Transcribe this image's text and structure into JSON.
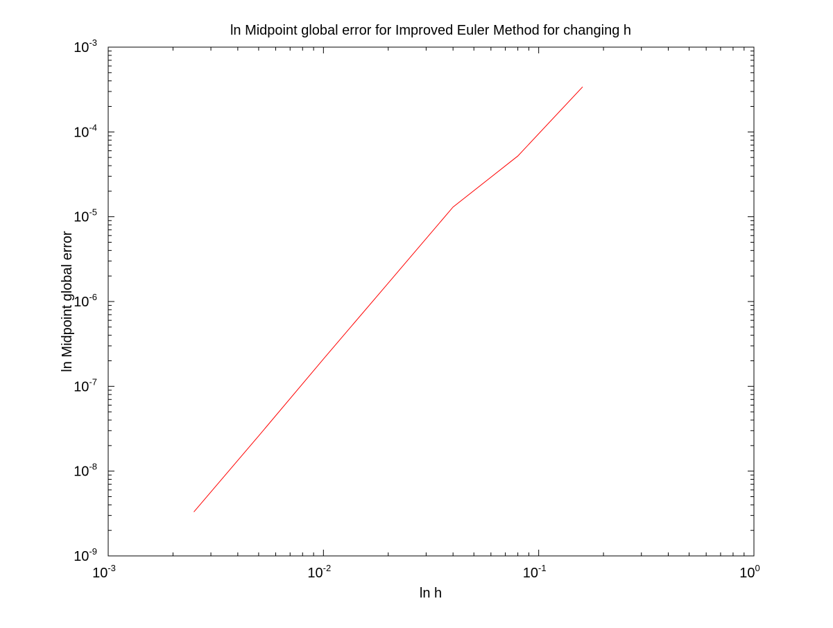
{
  "chart_data": {
    "type": "line",
    "title": "ln Midpoint global error for Improved Euler Method for changing h",
    "xlabel": "ln h",
    "ylabel": "ln Midpoint global error",
    "x_scale": "log",
    "y_scale": "log",
    "xlim": [
      0.001,
      1
    ],
    "ylim": [
      1e-09,
      0.001
    ],
    "grid": false,
    "x_ticks": [
      {
        "value": 0.001,
        "base": "10",
        "exp": "-3"
      },
      {
        "value": 0.01,
        "base": "10",
        "exp": "-2"
      },
      {
        "value": 0.1,
        "base": "10",
        "exp": "-1"
      },
      {
        "value": 1,
        "base": "10",
        "exp": "0"
      }
    ],
    "y_ticks": [
      {
        "value": 1e-09,
        "base": "10",
        "exp": "-9"
      },
      {
        "value": 1e-08,
        "base": "10",
        "exp": "-8"
      },
      {
        "value": 1e-07,
        "base": "10",
        "exp": "-7"
      },
      {
        "value": 1e-06,
        "base": "10",
        "exp": "-6"
      },
      {
        "value": 1e-05,
        "base": "10",
        "exp": "-5"
      },
      {
        "value": 0.0001,
        "base": "10",
        "exp": "-4"
      },
      {
        "value": 0.001,
        "base": "10",
        "exp": "-3"
      }
    ],
    "series": [
      {
        "color": "#ff0000",
        "x": [
          0.0025,
          0.005,
          0.01,
          0.02,
          0.04,
          0.08,
          0.16
        ],
        "y": [
          3.3e-09,
          2.6e-08,
          2.1e-07,
          1.65e-06,
          1.3e-05,
          5.2e-05,
          0.00034
        ]
      }
    ]
  }
}
